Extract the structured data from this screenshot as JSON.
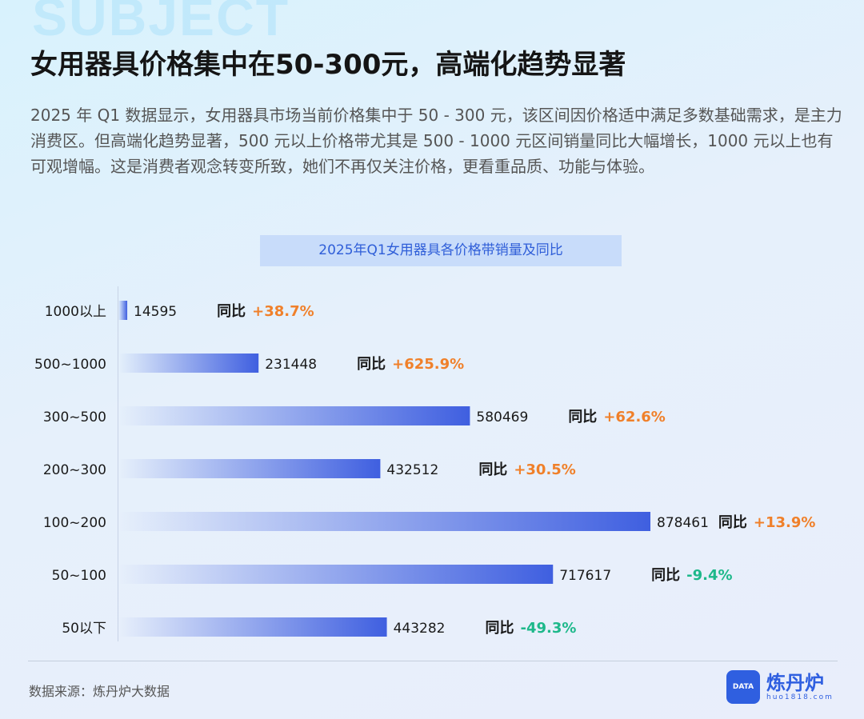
{
  "watermark": "SUBJECT",
  "title": "女用器具价格集中在50-300元，高端化趋势显著",
  "description": "2025 年 Q1 数据显示，女用器具市场当前价格集中于 50 - 300 元，该区间因价格适中满足多数基础需求，是主力消费区。但高端化趋势显著，500 元以上价格带尤其是 500 - 1000 元区间销量同比大幅增长，1000 元以上也有可观增幅。这是消费者观念转变所致，她们不再仅关注价格，更看重品质、功能与体验。",
  "source": "数据来源：炼丹炉大数据",
  "logo": {
    "name": "炼丹炉",
    "url": "huo1818.com",
    "badge": "DATA"
  },
  "chart_data": {
    "type": "bar",
    "orientation": "horizontal",
    "title": "2025年Q1女用器具各价格带销量及同比",
    "categories": [
      "1000以上",
      "500~1000",
      "300~500",
      "200~300",
      "100~200",
      "50~100",
      "50以下"
    ],
    "values": [
      14595,
      231448,
      580469,
      432512,
      878461,
      717617,
      443282
    ],
    "yoy_label": "同比",
    "yoy": [
      "+38.7%",
      "+625.9%",
      "+62.6%",
      "+30.5%",
      "+13.9%",
      "-9.4%",
      "-49.3%"
    ],
    "colors": {
      "bar": "#3f5fe0",
      "positive": "#f0802a",
      "negative": "#1db88a"
    },
    "grid": false
  }
}
